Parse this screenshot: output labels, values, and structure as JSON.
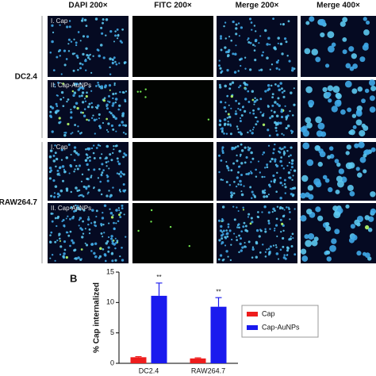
{
  "figure": {
    "columns": [
      "DAPI 200×",
      "FITC 200×",
      "Merge 200×",
      "Merge 400×"
    ],
    "cell_lines": [
      {
        "name": "DC2.4",
        "conditions": [
          "I. Cap",
          "II. Cap-AuNPs"
        ]
      },
      {
        "name": "RAW264.7",
        "conditions": [
          "I. Cap",
          "II. Cap-AuNPs"
        ]
      }
    ]
  },
  "chart_data": {
    "type": "bar",
    "panel_label": "B",
    "y_label": "% Cap internalized",
    "categories": [
      "DC2.4",
      "RAW264.7"
    ],
    "series": [
      {
        "name": "Cap",
        "color": "#ee1c1c",
        "values": [
          1.0,
          0.8
        ],
        "errors": [
          0.1,
          0.1
        ]
      },
      {
        "name": "Cap-AuNPs",
        "color": "#1a1aee",
        "values": [
          11.1,
          9.3
        ],
        "errors": [
          2.1,
          1.5
        ]
      }
    ],
    "annotations": [
      "**",
      "**"
    ],
    "ylim": [
      0,
      15
    ],
    "yticks": [
      0,
      5,
      10,
      15
    ],
    "legend": "right"
  }
}
